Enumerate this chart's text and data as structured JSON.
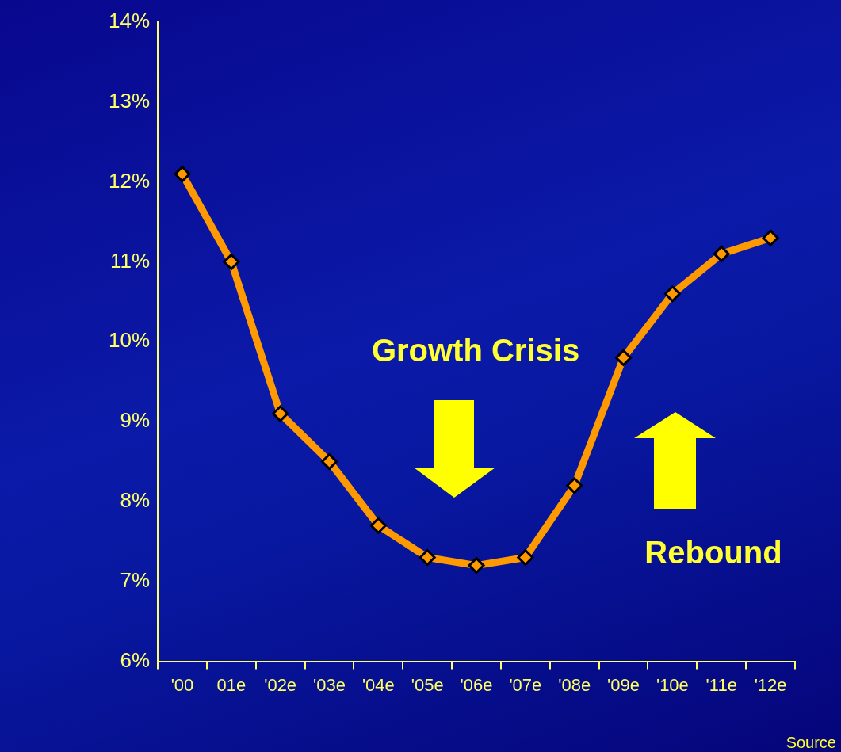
{
  "chart_data": {
    "type": "line",
    "categories": [
      "'00",
      "01e",
      "'02e",
      "'03e",
      "'04e",
      "'05e",
      "'06e",
      "'07e",
      "'08e",
      "'09e",
      "'10e",
      "'11e",
      "'12e"
    ],
    "series": [
      {
        "color": "#ff9900",
        "values": [
          12.1,
          11.0,
          9.1,
          8.5,
          7.7,
          7.3,
          7.2,
          7.3,
          8.2,
          9.8,
          10.6,
          11.1,
          11.3
        ]
      }
    ],
    "ylim": [
      6,
      14
    ],
    "yticks": [
      {
        "value": 6,
        "label": "6%"
      },
      {
        "value": 7,
        "label": "7%"
      },
      {
        "value": 8,
        "label": "8%"
      },
      {
        "value": 9,
        "label": "9%"
      },
      {
        "value": 10,
        "label": "10%"
      },
      {
        "value": 11,
        "label": "11%"
      },
      {
        "value": 12,
        "label": "12%"
      },
      {
        "value": 13,
        "label": "13%"
      },
      {
        "value": 14,
        "label": "14%"
      }
    ],
    "grid": false,
    "legend": false,
    "marker": "diamond",
    "line_style": "solid",
    "annotations": [
      "Growth Crisis",
      "Rebound",
      "Source"
    ]
  }
}
